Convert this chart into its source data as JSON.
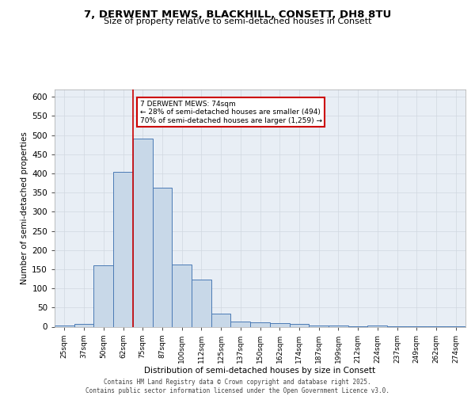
{
  "title_line1": "7, DERWENT MEWS, BLACKHILL, CONSETT, DH8 8TU",
  "title_line2": "Size of property relative to semi-detached houses in Consett",
  "xlabel": "Distribution of semi-detached houses by size in Consett",
  "ylabel": "Number of semi-detached properties",
  "categories": [
    "25sqm",
    "37sqm",
    "50sqm",
    "62sqm",
    "75sqm",
    "87sqm",
    "100sqm",
    "112sqm",
    "125sqm",
    "137sqm",
    "150sqm",
    "162sqm",
    "174sqm",
    "187sqm",
    "199sqm",
    "212sqm",
    "224sqm",
    "237sqm",
    "249sqm",
    "262sqm",
    "274sqm"
  ],
  "values": [
    4,
    8,
    160,
    405,
    490,
    362,
    163,
    122,
    35,
    14,
    11,
    9,
    8,
    4,
    4,
    1,
    4,
    1,
    1,
    1,
    1
  ],
  "bar_color": "#c8d8e8",
  "bar_edge_color": "#4a7ab5",
  "grid_color": "#d0d8e0",
  "bg_color": "#e8eef5",
  "red_line_index": 4,
  "annotation_text": "7 DERWENT MEWS: 74sqm\n← 28% of semi-detached houses are smaller (494)\n70% of semi-detached houses are larger (1,259) →",
  "annotation_box_color": "#ffffff",
  "annotation_border_color": "#cc0000",
  "footer_line1": "Contains HM Land Registry data © Crown copyright and database right 2025.",
  "footer_line2": "Contains public sector information licensed under the Open Government Licence v3.0.",
  "ylim": [
    0,
    620
  ],
  "yticks": [
    0,
    50,
    100,
    150,
    200,
    250,
    300,
    350,
    400,
    450,
    500,
    550,
    600
  ]
}
